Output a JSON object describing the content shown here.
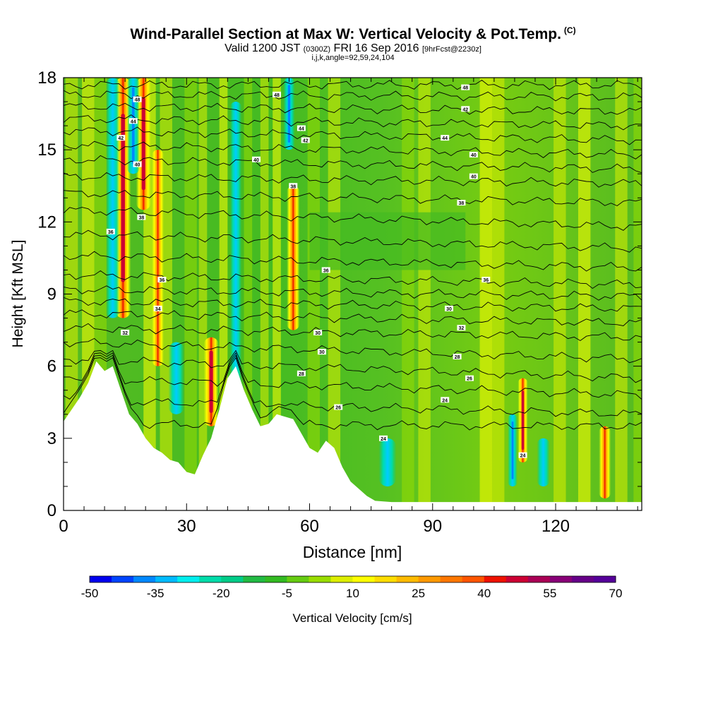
{
  "header": {
    "title": "Wind-Parallel Section at Max W: Vertical Velocity & Pot.Temp.",
    "copyright": "(C)",
    "subtitle_a": "Valid 1200 JST",
    "subtitle_b": "(0300Z)",
    "subtitle_c": "FRI 16 Sep 2016",
    "subtitle_d": "[9hrFcst@2230z]",
    "params": "i,j,k,angle=92,59,24,104"
  },
  "chart_data": {
    "type": "heatmap",
    "xlabel": "Distance [nm]",
    "ylabel": "Height [Kft MSL]",
    "xlim": [
      0,
      141
    ],
    "ylim": [
      0,
      18
    ],
    "x_ticks": [
      "0",
      "30",
      "60",
      "90",
      "120"
    ],
    "x_tick_values": [
      0,
      30,
      60,
      90,
      120
    ],
    "y_ticks": [
      "0",
      "3",
      "6",
      "9",
      "12",
      "15",
      "18"
    ],
    "y_tick_values": [
      0,
      3,
      6,
      9,
      12,
      15,
      18
    ],
    "colorbar": {
      "label": "Vertical Velocity [cm/s]",
      "ticks": [
        "-50",
        "-35",
        "-20",
        "-5",
        "10",
        "25",
        "40",
        "55",
        "70"
      ],
      "levels": [
        -50,
        70
      ],
      "colors": [
        "#0000ee",
        "#0044ff",
        "#0088ff",
        "#00bbff",
        "#00eeee",
        "#00dcaa",
        "#00cc88",
        "#22bb44",
        "#33bb22",
        "#66cc11",
        "#99dd00",
        "#ddee00",
        "#ffff00",
        "#ffdd00",
        "#ffbb00",
        "#ff9900",
        "#ff7700",
        "#ff5500",
        "#ee1100",
        "#cc0033",
        "#aa0055",
        "#880077",
        "#660088",
        "#550099"
      ]
    },
    "terrain": {
      "x": [
        0,
        2,
        4,
        6,
        8,
        10,
        12,
        14,
        16,
        18,
        20,
        22,
        24,
        26,
        28,
        30,
        32,
        34,
        36,
        38,
        40,
        42,
        44,
        46,
        48,
        50,
        52,
        54,
        56,
        58,
        60,
        62,
        64,
        66,
        68,
        70,
        72,
        74,
        76,
        80,
        141
      ],
      "y": [
        3.7,
        4.2,
        4.7,
        5.3,
        6.2,
        5.8,
        6.0,
        5.0,
        4.0,
        3.6,
        3.0,
        2.6,
        2.4,
        2.1,
        2.0,
        1.6,
        1.5,
        2.3,
        3.0,
        4.2,
        5.5,
        6.0,
        5.0,
        4.2,
        3.5,
        3.6,
        4.0,
        3.9,
        3.8,
        3.2,
        2.6,
        2.4,
        2.9,
        2.6,
        1.8,
        1.2,
        0.9,
        0.6,
        0.4,
        0.35,
        0.35
      ]
    },
    "updrafts": [
      {
        "x": 14.5,
        "y0": 8.0,
        "y1": 18.0,
        "w": 1.6,
        "value": 50
      },
      {
        "x": 19.5,
        "y0": 12.5,
        "y1": 18.0,
        "w": 1.5,
        "value": 60
      },
      {
        "x": 23.0,
        "y0": 6.0,
        "y1": 15.0,
        "w": 1.2,
        "value": 30
      },
      {
        "x": 36.0,
        "y0": 3.5,
        "y1": 7.2,
        "w": 1.5,
        "value": 55
      },
      {
        "x": 56.0,
        "y0": 7.5,
        "y1": 13.5,
        "w": 1.3,
        "value": 35
      },
      {
        "x": 112.0,
        "y0": 2.0,
        "y1": 5.5,
        "w": 1.0,
        "value": 60
      },
      {
        "x": 132.0,
        "y0": 0.5,
        "y1": 3.5,
        "w": 1.2,
        "value": 25
      }
    ],
    "downdrafts": [
      {
        "x": 12.0,
        "y0": 8.0,
        "y1": 18.0,
        "w": 1.4,
        "value": -30
      },
      {
        "x": 17.0,
        "y0": 14.0,
        "y1": 18.0,
        "w": 1.3,
        "value": -45
      },
      {
        "x": 27.5,
        "y0": 4.0,
        "y1": 7.0,
        "w": 1.6,
        "value": -25
      },
      {
        "x": 42.0,
        "y0": 4.0,
        "y1": 17.0,
        "w": 1.2,
        "value": -20
      },
      {
        "x": 55.0,
        "y0": 15.0,
        "y1": 18.0,
        "w": 1.2,
        "value": -40
      },
      {
        "x": 79.0,
        "y0": 1.0,
        "y1": 3.0,
        "w": 1.8,
        "value": -25
      },
      {
        "x": 109.5,
        "y0": 1.0,
        "y1": 4.0,
        "w": 1.0,
        "value": -40
      },
      {
        "x": 117.0,
        "y0": 1.0,
        "y1": 3.0,
        "w": 1.3,
        "value": -25
      }
    ],
    "isentropes": {
      "y_left": [
        3.6,
        4.6,
        5.5,
        6.3,
        7.0,
        7.6,
        8.2,
        8.7,
        9.2,
        9.8,
        10.6,
        11.5,
        12.5,
        13.2,
        13.9,
        14.6,
        15.2,
        15.8,
        16.3,
        16.8,
        17.3,
        17.7
      ],
      "y_right": [
        3.5,
        4.0,
        4.8,
        5.5,
        6.3,
        7.2,
        7.8,
        8.4,
        8.9,
        9.4,
        10.1,
        10.9,
        11.8,
        12.8,
        13.6,
        14.2,
        14.8,
        15.4,
        16.0,
        16.6,
        17.2,
        17.7
      ]
    },
    "contour_labels": [
      {
        "x": 58,
        "y": 5.7,
        "text": "28"
      },
      {
        "x": 67,
        "y": 4.3,
        "text": "26"
      },
      {
        "x": 78,
        "y": 3.0,
        "text": "24"
      },
      {
        "x": 93,
        "y": 4.6,
        "text": "24"
      },
      {
        "x": 62,
        "y": 7.4,
        "text": "30"
      },
      {
        "x": 63,
        "y": 6.6,
        "text": "30"
      },
      {
        "x": 96,
        "y": 6.4,
        "text": "28"
      },
      {
        "x": 99,
        "y": 5.5,
        "text": "26"
      },
      {
        "x": 94,
        "y": 8.4,
        "text": "30"
      },
      {
        "x": 97,
        "y": 7.6,
        "text": "32"
      },
      {
        "x": 64,
        "y": 10.0,
        "text": "36"
      },
      {
        "x": 103,
        "y": 9.6,
        "text": "36"
      },
      {
        "x": 97,
        "y": 12.8,
        "text": "38"
      },
      {
        "x": 19,
        "y": 12.2,
        "text": "38"
      },
      {
        "x": 24,
        "y": 9.6,
        "text": "36"
      },
      {
        "x": 23,
        "y": 8.4,
        "text": "34"
      },
      {
        "x": 15,
        "y": 7.4,
        "text": "32"
      },
      {
        "x": 56,
        "y": 13.5,
        "text": "38"
      },
      {
        "x": 47,
        "y": 14.6,
        "text": "40"
      },
      {
        "x": 100,
        "y": 13.9,
        "text": "40"
      },
      {
        "x": 100,
        "y": 14.8,
        "text": "40"
      },
      {
        "x": 93,
        "y": 15.5,
        "text": "44"
      },
      {
        "x": 59,
        "y": 15.4,
        "text": "42"
      },
      {
        "x": 58,
        "y": 15.9,
        "text": "44"
      },
      {
        "x": 52,
        "y": 17.3,
        "text": "48"
      },
      {
        "x": 98,
        "y": 16.7,
        "text": "42"
      },
      {
        "x": 98,
        "y": 17.6,
        "text": "48"
      },
      {
        "x": 18,
        "y": 14.4,
        "text": "40"
      },
      {
        "x": 14,
        "y": 15.5,
        "text": "42"
      },
      {
        "x": 17,
        "y": 16.2,
        "text": "44"
      },
      {
        "x": 18,
        "y": 17.1,
        "text": "48"
      },
      {
        "x": 11.5,
        "y": 11.6,
        "text": "36"
      },
      {
        "x": 112,
        "y": 2.3,
        "text": "24"
      }
    ]
  }
}
